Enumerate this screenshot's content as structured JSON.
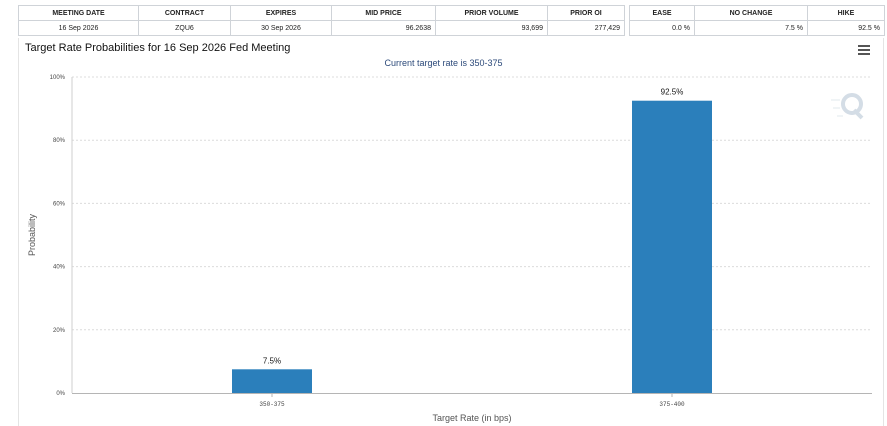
{
  "table_main": {
    "headers": [
      "MEETING DATE",
      "CONTRACT",
      "EXPIRES",
      "MID PRICE",
      "PRIOR VOLUME",
      "PRIOR OI"
    ],
    "row": [
      "16 Sep 2026",
      "ZQU6",
      "30 Sep 2026",
      "96.2638",
      "93,699",
      "277,429"
    ]
  },
  "table_prob": {
    "headers": [
      "EASE",
      "NO CHANGE",
      "HIKE"
    ],
    "row": [
      "0.0 %",
      "7.5 %",
      "92.5 %"
    ]
  },
  "chart": {
    "title": "Target Rate Probabilities for 16 Sep 2026 Fed Meeting",
    "subtitle": "Current target rate is 350-375"
  },
  "chart_data": {
    "type": "bar",
    "title": "Target Rate Probabilities for 16 Sep 2026 Fed Meeting",
    "subtitle": "Current target rate is 350-375",
    "categories": [
      "350-375",
      "375-400"
    ],
    "values": [
      7.5,
      92.5
    ],
    "data_labels": [
      "7.5%",
      "92.5%"
    ],
    "xlabel": "Target Rate (in bps)",
    "ylabel": "Probability",
    "ylim": [
      0,
      100
    ],
    "yticks": [
      0,
      20,
      40,
      60,
      80,
      100
    ],
    "ytick_labels": [
      "0%",
      "20%",
      "40%",
      "60%",
      "80%",
      "100%"
    ],
    "grid": true,
    "legend": "none",
    "bar_color": "#2b7fbb"
  }
}
